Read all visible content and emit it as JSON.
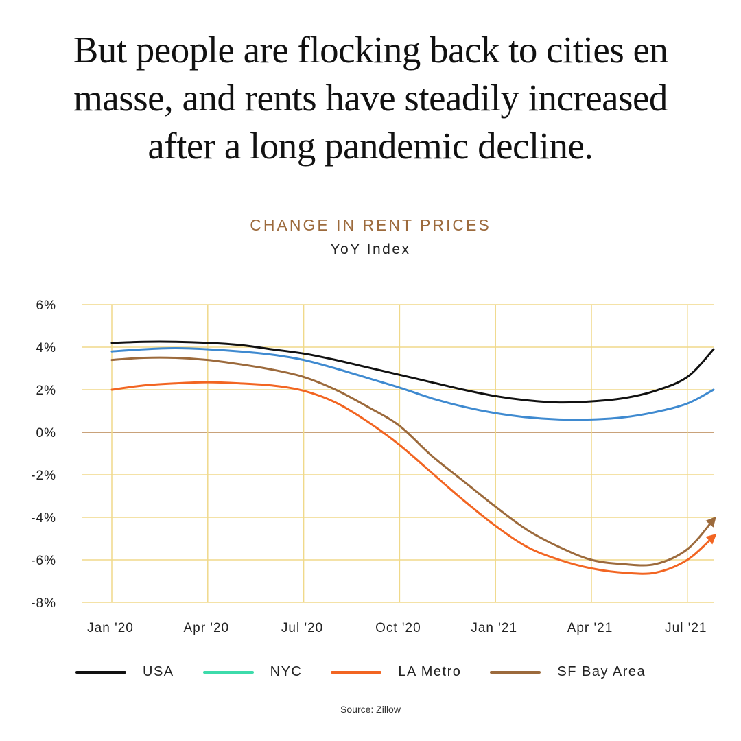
{
  "headline": [
    "But people are flocking back to cities en",
    "masse, and rents have steadily increased",
    "after a long pandemic decline."
  ],
  "source": "Source: Zillow",
  "chart_data": {
    "type": "line",
    "title": "CHANGE IN RENT PRICES",
    "subtitle": "YoY Index",
    "xlabel": "",
    "ylabel": "",
    "ylim": [
      -8,
      6
    ],
    "yticks": [
      6,
      4,
      2,
      0,
      -2,
      -4,
      -6,
      -8
    ],
    "ytick_labels": [
      "6%",
      "4%",
      "2%",
      "0%",
      "-2%",
      "-4%",
      "-6%",
      "-8%"
    ],
    "x": [
      "2020-01",
      "2020-02",
      "2020-03",
      "2020-04",
      "2020-05",
      "2020-06",
      "2020-07",
      "2020-08",
      "2020-09",
      "2020-10",
      "2020-11",
      "2020-12",
      "2021-01",
      "2021-02",
      "2021-03",
      "2021-04",
      "2021-05",
      "2021-06",
      "2021-07",
      "2021-08"
    ],
    "xtick_positions": [
      "2020-01",
      "2020-04",
      "2020-07",
      "2020-10",
      "2021-01",
      "2021-04",
      "2021-07"
    ],
    "xtick_labels": [
      "Jan '20",
      "Apr '20",
      "Jul '20",
      "Oct '20",
      "Jan '21",
      "Apr '21",
      "Jul '21"
    ],
    "grid": true,
    "grid_color": "#f0d98a",
    "zero_line_color": "#c9a27a",
    "legend_placement": "bottom",
    "series": [
      {
        "name": "USA",
        "color": "#111111",
        "legend_color": "#111111",
        "arrow": false,
        "values": [
          4.2,
          4.25,
          4.25,
          4.2,
          4.1,
          3.9,
          3.7,
          3.4,
          3.05,
          2.7,
          2.35,
          2.0,
          1.7,
          1.5,
          1.4,
          1.45,
          1.6,
          1.95,
          2.6,
          3.9
        ]
      },
      {
        "name": "NYC",
        "color": "#3f8ad0",
        "legend_color": "#3ddbab",
        "arrow": false,
        "values": [
          3.8,
          3.9,
          3.95,
          3.9,
          3.8,
          3.65,
          3.4,
          3.0,
          2.55,
          2.1,
          1.6,
          1.2,
          0.9,
          0.7,
          0.6,
          0.6,
          0.7,
          0.95,
          1.35,
          2.0
        ]
      },
      {
        "name": "LA Metro",
        "color": "#f26522",
        "legend_color": "#f26522",
        "arrow": true,
        "values": [
          2.0,
          2.2,
          2.3,
          2.35,
          2.3,
          2.2,
          1.95,
          1.4,
          0.5,
          -0.6,
          -1.9,
          -3.2,
          -4.4,
          -5.4,
          -6.0,
          -6.4,
          -6.6,
          -6.6,
          -6.0,
          -4.9
        ]
      },
      {
        "name": "SF Bay Area",
        "color": "#9c6a3c",
        "legend_color": "#9c6a3c",
        "arrow": true,
        "values": [
          3.4,
          3.5,
          3.5,
          3.4,
          3.2,
          2.95,
          2.6,
          2.0,
          1.2,
          0.3,
          -1.1,
          -2.3,
          -3.5,
          -4.6,
          -5.4,
          -6.0,
          -6.2,
          -6.2,
          -5.5,
          -4.1
        ]
      }
    ]
  }
}
